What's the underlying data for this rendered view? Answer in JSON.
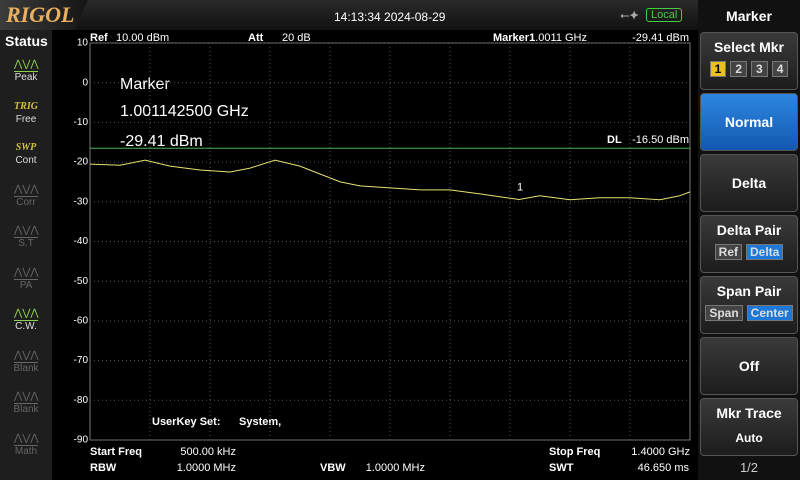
{
  "header": {
    "brand": "RIGOL",
    "datetime": "14:13:34 2024-08-29",
    "mode": "Local"
  },
  "status_panel": {
    "title": "Status",
    "items": [
      {
        "label": "Peak",
        "active": true
      },
      {
        "tag": "TRIG",
        "label": "Free",
        "active": true
      },
      {
        "tag": "SWP",
        "label": "Cont",
        "active": true
      },
      {
        "label": "Corr",
        "active": false
      },
      {
        "label": "S.T",
        "active": false
      },
      {
        "label": "PA",
        "active": false
      },
      {
        "label": "C.W.",
        "active": true
      },
      {
        "label": "Blank",
        "active": false
      },
      {
        "label": "Blank",
        "active": false
      },
      {
        "label": "Math",
        "active": false
      }
    ]
  },
  "top_bar": {
    "ref_label": "Ref",
    "ref_value": "10.00 dBm",
    "att_label": "Att",
    "att_value": "20 dB",
    "marker_label": "Marker1",
    "marker_freq": "1.0011 GHz",
    "marker_level": "-29.41 dBm"
  },
  "marker_readout": {
    "title": "Marker",
    "freq": "1.001142500 GHz",
    "level": "-29.41 dBm"
  },
  "user_key": {
    "label": "UserKey Set:",
    "value": "System,"
  },
  "bottom_bar": {
    "start_label": "Start Freq",
    "start_value": "500.00 kHz",
    "stop_label": "Stop Freq",
    "stop_value": "1.4000 GHz",
    "rbw_label": "RBW",
    "rbw_value": "1.0000 MHz",
    "vbw_label": "VBW",
    "vbw_value": "1.0000 MHz",
    "swt_label": "SWT",
    "swt_value": "46.650 ms"
  },
  "menu": {
    "title": "Marker",
    "page": "1/2",
    "items": [
      {
        "label": "Select Mkr",
        "options": [
          "1",
          "2",
          "3",
          "4"
        ],
        "selected": 0
      },
      {
        "label": "Normal",
        "active": true
      },
      {
        "label": "Delta"
      },
      {
        "label": "Delta Pair",
        "options": [
          "Ref",
          "Delta"
        ],
        "selected": 1
      },
      {
        "label": "Span Pair",
        "options": [
          "Span",
          "Center"
        ],
        "selected": 1
      },
      {
        "label": "Off"
      },
      {
        "label": "Mkr Trace",
        "sub": "Auto"
      }
    ]
  },
  "chart_data": {
    "type": "line",
    "x": [
      0.0005,
      0.0705,
      0.129,
      0.187,
      0.257,
      0.327,
      0.374,
      0.432,
      0.49,
      0.537,
      0.584,
      0.63,
      0.7,
      0.77,
      0.84,
      0.91,
      1.0011,
      1.05,
      1.12,
      1.19,
      1.26,
      1.33,
      1.376,
      1.4
    ],
    "series": [
      {
        "color": "#e8e070",
        "values": [
          -20.5,
          -20.8,
          -19.5,
          -21,
          -22,
          -22.5,
          -21.5,
          -19.5,
          -21,
          -23,
          -25,
          -26,
          -26.5,
          -27,
          -27,
          -28,
          -29.41,
          -28.5,
          -29.5,
          -29,
          -29,
          -29.5,
          -28.5,
          -27.5
        ]
      }
    ],
    "xlim": [
      0.0005,
      1.4
    ],
    "ylim": [
      -90,
      10
    ],
    "yticks": [
      10,
      0,
      -10,
      -20,
      -30,
      -40,
      -50,
      -60,
      -70,
      -80,
      -90
    ],
    "grid": true,
    "marker": {
      "label": "1",
      "x": 1.0011,
      "value": -29.41
    },
    "display_line": {
      "label": "DL",
      "value": -16.5,
      "value_label": "-16.50 dBm",
      "color": "#4caf50"
    }
  }
}
